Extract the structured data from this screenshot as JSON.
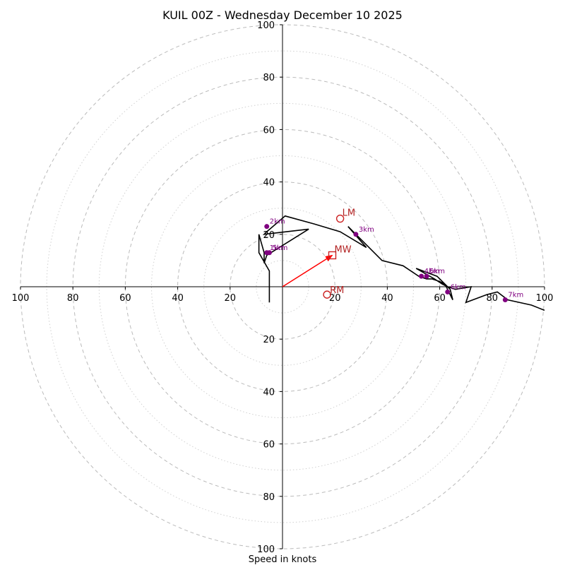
{
  "chart_data": {
    "type": "hodograph",
    "title": "KUIL 00Z - Wednesday December 10 2025",
    "xlabel": "Speed in knots",
    "range": [
      -100,
      100
    ],
    "ring_major_step": 20,
    "ring_minor_step": 10,
    "tick_labels": {
      "x": [
        {
          "value": -100,
          "label": "100"
        },
        {
          "value": -80,
          "label": "80"
        },
        {
          "value": -60,
          "label": "60"
        },
        {
          "value": -40,
          "label": "40"
        },
        {
          "value": -20,
          "label": "20"
        },
        {
          "value": 20,
          "label": "20"
        },
        {
          "value": 40,
          "label": "40"
        },
        {
          "value": 60,
          "label": "60"
        },
        {
          "value": 80,
          "label": "80"
        },
        {
          "value": 100,
          "label": "100"
        }
      ],
      "y": [
        {
          "value": 100,
          "label": "100"
        },
        {
          "value": 80,
          "label": "80"
        },
        {
          "value": 60,
          "label": "60"
        },
        {
          "value": 40,
          "label": "40"
        },
        {
          "value": 20,
          "label": "20"
        },
        {
          "value": -20,
          "label": "20"
        },
        {
          "value": -40,
          "label": "40"
        },
        {
          "value": -60,
          "label": "60"
        },
        {
          "value": -80,
          "label": "80"
        },
        {
          "value": -100,
          "label": "100"
        }
      ]
    },
    "trace": [
      [
        -5,
        -6
      ],
      [
        -5,
        2
      ],
      [
        -5,
        6
      ],
      [
        -9,
        13
      ],
      [
        -9,
        20
      ],
      [
        -7,
        13
      ],
      [
        -7,
        9
      ],
      [
        -6,
        12
      ],
      [
        10,
        22
      ],
      [
        -7,
        20
      ],
      [
        -6,
        21
      ],
      [
        1,
        27
      ],
      [
        12,
        24
      ],
      [
        22,
        21
      ],
      [
        32,
        15
      ],
      [
        25,
        23
      ],
      [
        38,
        10
      ],
      [
        46,
        8
      ],
      [
        49,
        6
      ],
      [
        52,
        4
      ],
      [
        55,
        3
      ],
      [
        57,
        3
      ],
      [
        60,
        2
      ],
      [
        62,
        1
      ],
      [
        63,
        -1
      ],
      [
        64,
        -3
      ],
      [
        65,
        -5
      ],
      [
        64,
        -1
      ],
      [
        63,
        0
      ],
      [
        59,
        4
      ],
      [
        51,
        7
      ],
      [
        58,
        3
      ],
      [
        61,
        1
      ],
      [
        63,
        0
      ],
      [
        66,
        -1
      ],
      [
        72,
        0
      ],
      [
        70,
        -6
      ],
      [
        78,
        -3
      ],
      [
        82,
        -2
      ],
      [
        86,
        -5
      ],
      [
        95,
        -7
      ],
      [
        100,
        -9
      ]
    ],
    "height_markers": [
      {
        "label": "1km",
        "u": -6,
        "v": 13
      },
      {
        "label": "2km",
        "u": -6,
        "v": 23
      },
      {
        "label": "3km",
        "u": 28,
        "v": 20
      },
      {
        "label": "4km",
        "u": 53,
        "v": 4
      },
      {
        "label": "5km",
        "u": 55,
        "v": 4
      },
      {
        "label": "6km",
        "u": 63,
        "v": -2
      },
      {
        "label": "7km",
        "u": 85,
        "v": -5
      },
      {
        "label": "5km",
        "u": -5,
        "v": 13
      }
    ],
    "storm_motion": {
      "LM": {
        "label": "LM",
        "u": 22,
        "v": 26
      },
      "RM": {
        "label": "RM",
        "u": 17,
        "v": -3
      },
      "MW": {
        "label": "MW",
        "u": 19,
        "v": 12
      }
    },
    "colors": {
      "trace": "#000000",
      "markers": "#800080",
      "storm": "#cc2222",
      "arrow": "#ff0000",
      "rings": "#bbbbbb"
    }
  }
}
